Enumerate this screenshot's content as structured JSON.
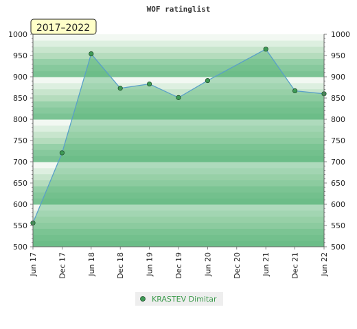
{
  "chart_data": {
    "type": "area",
    "title": "WOF ratinglist",
    "badge": "2017–2022",
    "xlabel": "",
    "ylabel": "",
    "ylim": [
      500,
      1000
    ],
    "yticks": [
      500,
      550,
      600,
      650,
      700,
      750,
      800,
      850,
      900,
      950,
      1000
    ],
    "x_ticks": [
      "Jun 17",
      "Dec 17",
      "Jun 18",
      "Dec 18",
      "Jun 19",
      "Dec 19",
      "Jun 20",
      "Dec 20",
      "Jun 21",
      "Dec 21",
      "Jun 22"
    ],
    "series": [
      {
        "name": "KRASTEV Dimitar",
        "points": [
          {
            "x": "Jun 17",
            "y": 556
          },
          {
            "x": "Dec 17",
            "y": 721
          },
          {
            "x": "Jun 18",
            "y": 954
          },
          {
            "x": "Dec 18",
            "y": 873
          },
          {
            "x": "Jun 19",
            "y": 883
          },
          {
            "x": "Dec 19",
            "y": 851
          },
          {
            "x": "Jun 20",
            "y": 891
          },
          {
            "x": "Jun 21",
            "y": 965
          },
          {
            "x": "Dec 21",
            "y": 867
          },
          {
            "x": "Jun 22",
            "y": 860
          }
        ]
      }
    ],
    "grid": true,
    "legend_position": "bottom",
    "colors": {
      "band_light": "#f2f8f2",
      "band_mid": "#b5dcbd",
      "band_dark": "#7bc394",
      "area_fill": "#5cb57a",
      "line": "#5aa0c8",
      "marker": "#3e9a56"
    }
  }
}
